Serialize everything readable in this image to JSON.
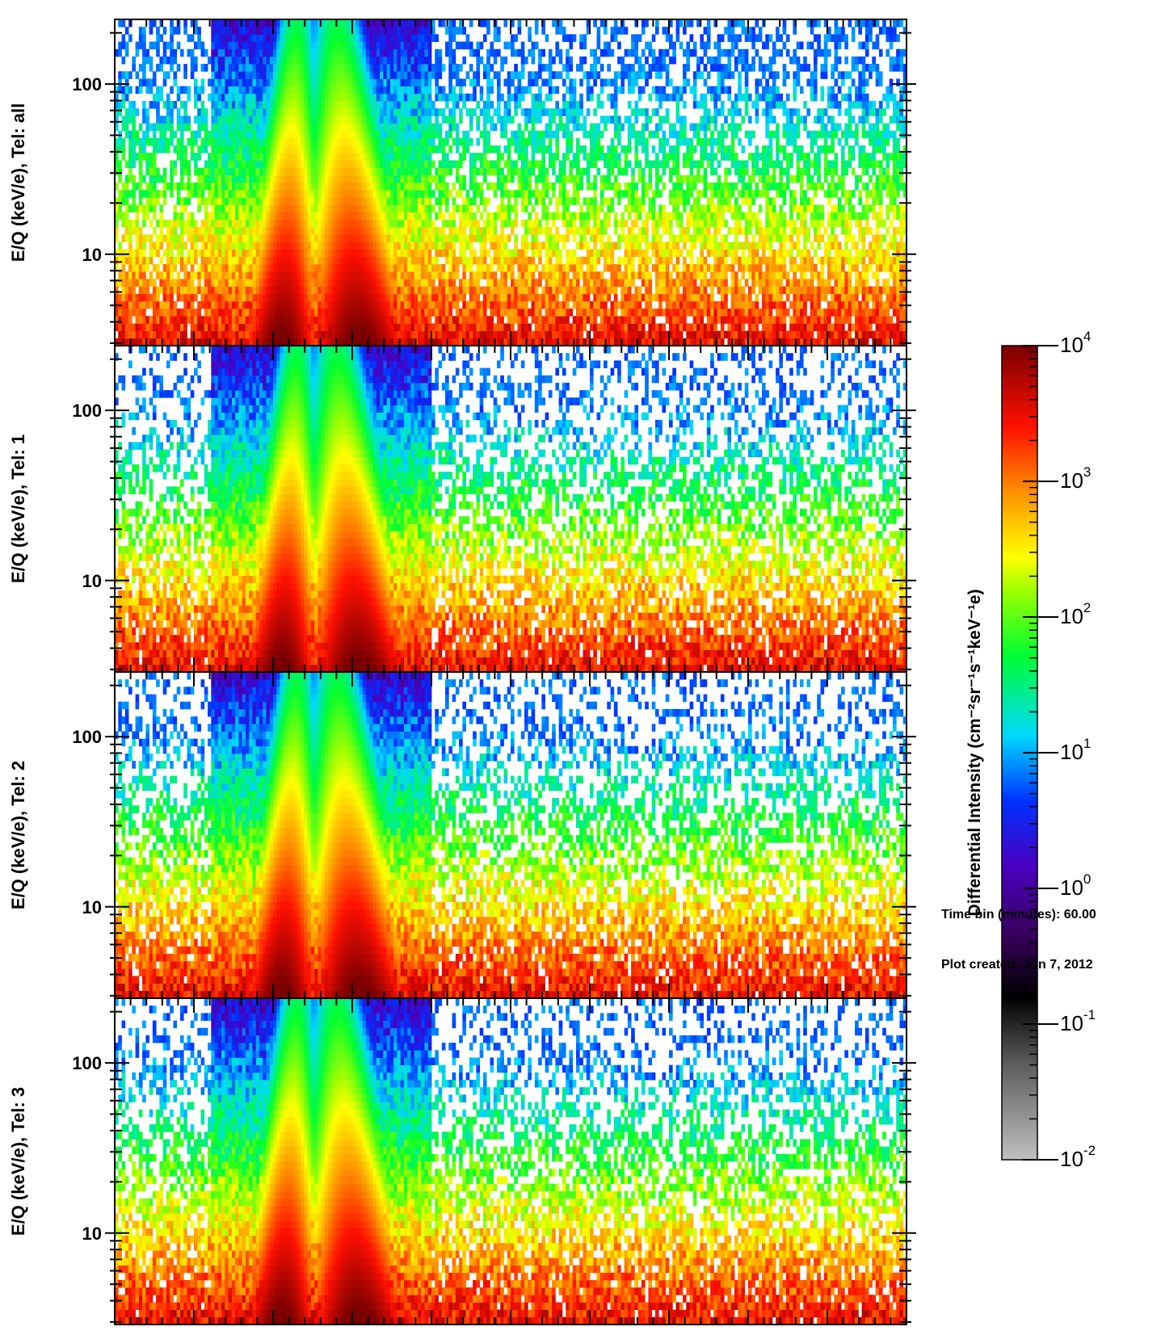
{
  "chart_data": {
    "type": "heatmap",
    "panels": [
      {
        "ylabel": "E/Q (keV/e), Tel: all",
        "telescope": "all",
        "yticks": [
          "10",
          "100"
        ]
      },
      {
        "ylabel": "E/Q (keV/e), Tel: 1",
        "telescope": "1",
        "yticks": [
          "10",
          "100"
        ]
      },
      {
        "ylabel": "E/Q (keV/e), Tel: 2",
        "telescope": "2",
        "yticks": [
          "10",
          "100"
        ]
      },
      {
        "ylabel": "E/Q (keV/e), Tel: 3",
        "telescope": "3",
        "yticks": [
          "10",
          "100"
        ]
      }
    ],
    "yscale": "log",
    "ylim": [
      2.9,
      240
    ],
    "y_major_ticks": [
      10,
      100
    ],
    "colorbar": {
      "label": "Differential Intensity (cm⁻²sr⁻¹s⁻¹keV⁻¹e)",
      "scale": "log",
      "range": [
        0.01,
        10000
      ],
      "tick_values": [
        0.01,
        0.1,
        1,
        10,
        100,
        1000,
        10000
      ],
      "tick_labels": [
        "10",
        "10",
        "10",
        "10",
        "10",
        "10",
        "10"
      ],
      "tick_exponents": [
        "-2",
        "-1",
        "0",
        "1",
        "2",
        "3",
        "4"
      ],
      "colors": [
        "#c0c0c0",
        "#000000",
        "#4a007a",
        "#0020ff",
        "#00e0ff",
        "#00ff30",
        "#ffff00",
        "#ff8000",
        "#ff0000",
        "#800000"
      ]
    },
    "features": [
      {
        "description": "intense burst A",
        "x_fraction_center": 0.21
      },
      {
        "description": "intense burst B",
        "x_fraction_center": 0.31
      }
    ]
  },
  "footer": {
    "time_bin": "Time bin (minutes): 60.00",
    "plot_created": "Plot created: Jun  7, 2012"
  }
}
